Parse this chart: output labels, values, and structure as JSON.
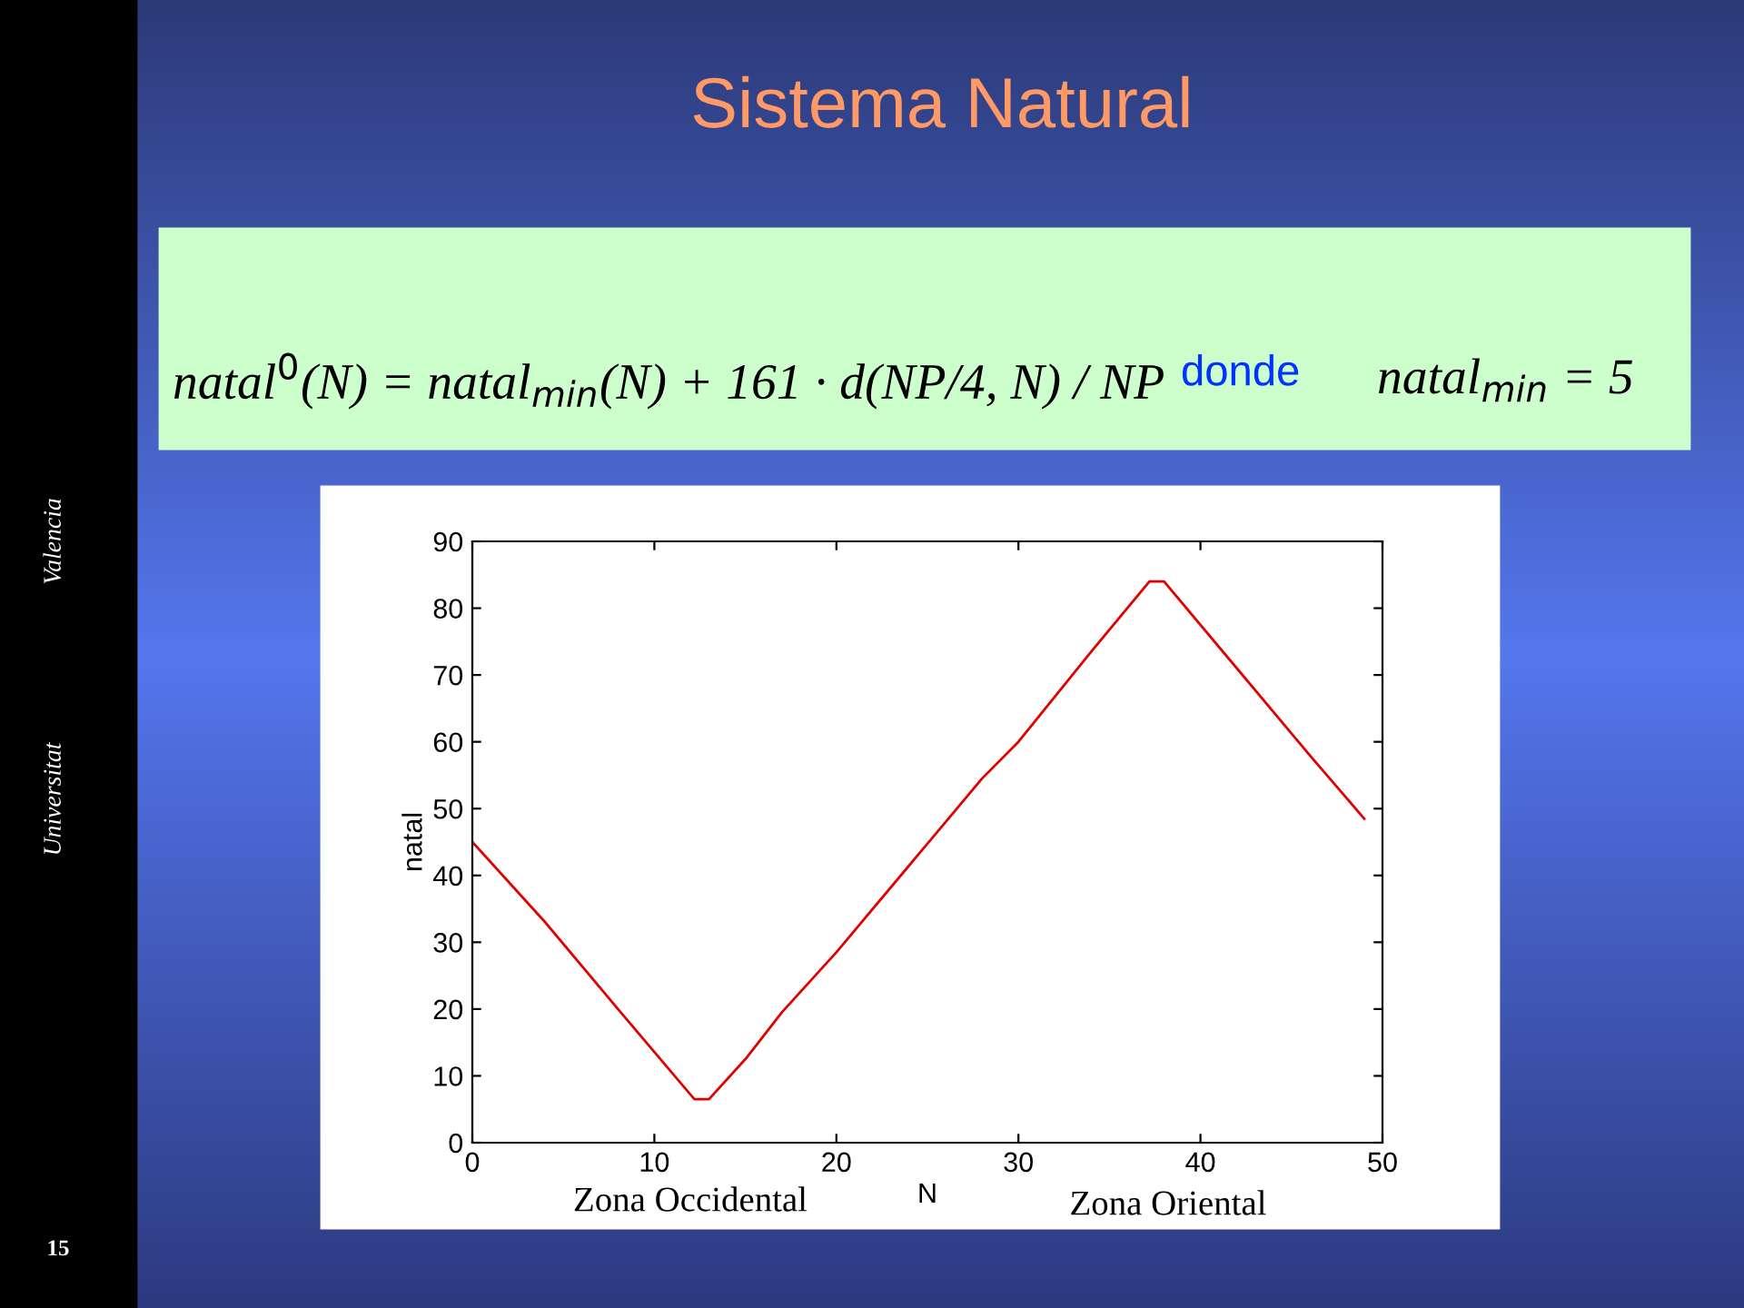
{
  "chart_data": {
    "type": "line",
    "title": "Sistema Natural",
    "xlabel": "N",
    "ylabel": "natal",
    "x": [
      0,
      4,
      8,
      12.2,
      13,
      15,
      17,
      20,
      24,
      28,
      30,
      34,
      37.2,
      38,
      42,
      46,
      49
    ],
    "series": [
      {
        "color": "#e00000",
        "values": [
          45,
          33,
          20,
          6.5,
          6.5,
          12.5,
          19.5,
          28.5,
          41.5,
          54.5,
          60,
          73.5,
          84,
          84,
          71,
          58,
          48.5
        ]
      }
    ],
    "xlim": [
      0,
      50
    ],
    "ylim": [
      0,
      90
    ],
    "xticks": [
      0,
      10,
      20,
      30,
      40,
      50
    ],
    "yticks": [
      0,
      10,
      20,
      30,
      40,
      50,
      60,
      70,
      80,
      90
    ],
    "grid": false,
    "marker": "none",
    "line_style": "solid",
    "annotations": [
      "natal$^{0}$(N) = natal$_{min}$(N) + 161 · d(NP/4, N) / NP",
      "donde",
      "natal$_{min}$ = 5",
      "Zona Occidental",
      "Zona Oriental",
      "Universitat",
      "Valencia",
      "15"
    ]
  }
}
